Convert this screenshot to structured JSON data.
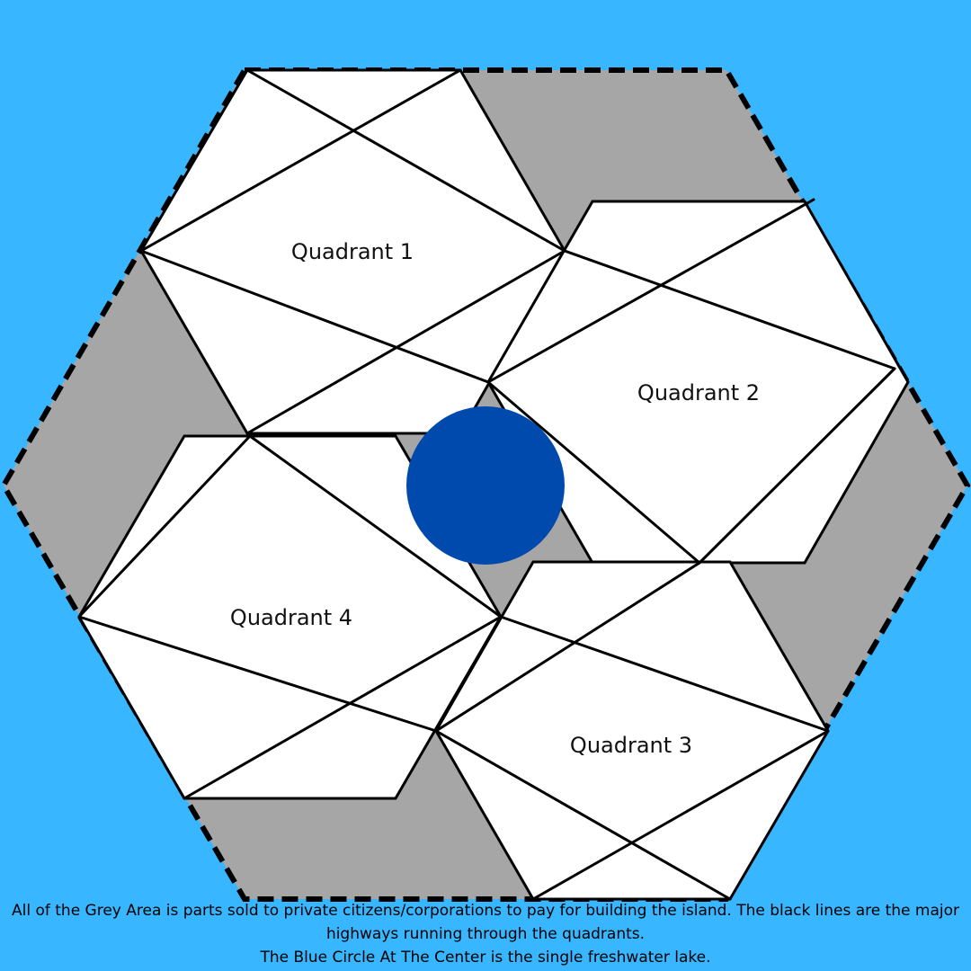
{
  "colors": {
    "background": "#38b6ff",
    "grey_area": "#a6a6a6",
    "quadrant_fill": "#ffffff",
    "highway": "#000000",
    "lake": "#004aad"
  },
  "quadrants": [
    {
      "id": 1,
      "label": "Quadrant 1"
    },
    {
      "id": 2,
      "label": "Quadrant 2"
    },
    {
      "id": 3,
      "label": "Quadrant 3"
    },
    {
      "id": 4,
      "label": "Quadrant 4"
    }
  ],
  "legend": {
    "line1": "All of the Grey Area is parts sold to private citizens/corporations to pay for building the island. The black lines are the major highways running through the quadrants.",
    "line2": "The Blue Circle At The Center is the single freshwater lake."
  }
}
